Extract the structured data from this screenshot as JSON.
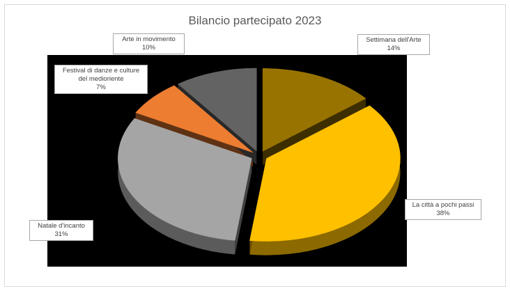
{
  "chart_data": {
    "type": "pie",
    "title": "Bilancio partecipato 2023",
    "slices": [
      {
        "label": "Settimana dell'Arte",
        "value": 14,
        "value_label": "14%",
        "color": "#997300"
      },
      {
        "label": "La città a pochi passi",
        "value": 38,
        "value_label": "38%",
        "color": "#ffc000"
      },
      {
        "label": "Natale d'incanto",
        "value": 31,
        "value_label": "31%",
        "color": "#a5a5a5"
      },
      {
        "label": "Festival di danze e culture del medioriente",
        "value": 7,
        "value_label": "7%",
        "color": "#ed7d31"
      },
      {
        "label": "Arte in movimento",
        "value": 10,
        "value_label": "10%",
        "color": "#636363"
      }
    ],
    "exploded": true,
    "three_d": true,
    "plot_background": "#000000",
    "legend": "none"
  }
}
